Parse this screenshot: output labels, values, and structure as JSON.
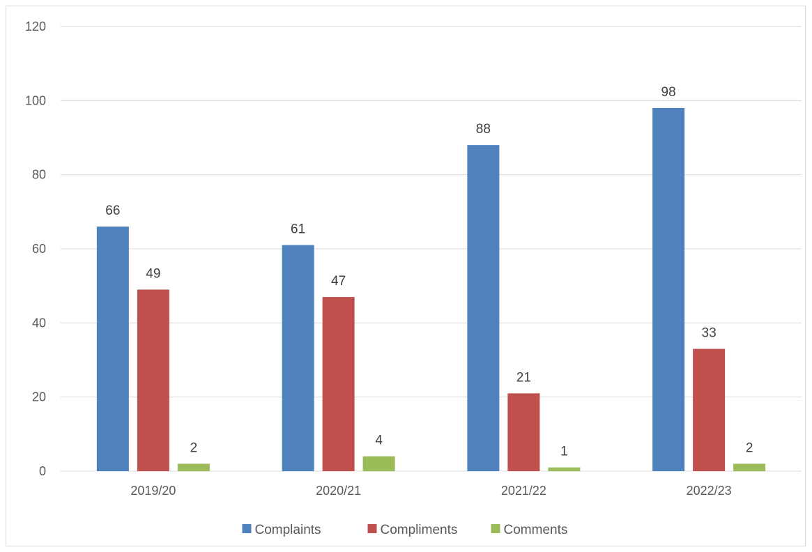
{
  "chart_data": {
    "type": "bar",
    "title": "",
    "xlabel": "",
    "ylabel": "",
    "categories": [
      "2019/20",
      "2020/21",
      "2021/22",
      "2022/23"
    ],
    "series": [
      {
        "name": "Complaints",
        "color": "#4F81BD",
        "values": [
          66,
          61,
          88,
          98
        ]
      },
      {
        "name": "Compliments",
        "color": "#C0504D",
        "values": [
          49,
          47,
          21,
          33
        ]
      },
      {
        "name": "Comments",
        "color": "#9BBB59",
        "values": [
          2,
          4,
          1,
          2
        ]
      }
    ],
    "ylim": [
      0,
      120
    ],
    "yticks": [
      0,
      20,
      40,
      60,
      80,
      100,
      120
    ],
    "grid": true,
    "legend_position": "bottom",
    "data_labels": true,
    "gridline_color": "#d9d9d9"
  }
}
